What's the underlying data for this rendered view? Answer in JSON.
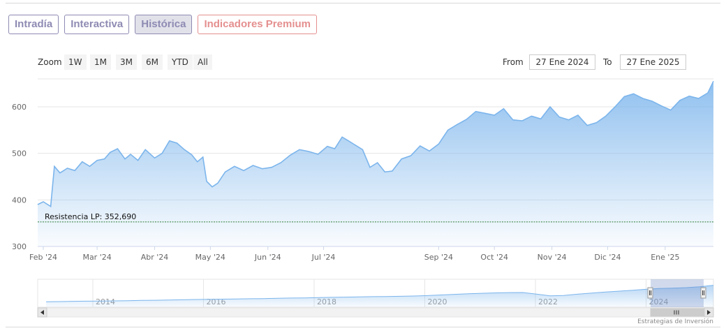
{
  "tabs": [
    {
      "label": "Intradía",
      "active": false,
      "premium": false
    },
    {
      "label": "Interactiva",
      "active": false,
      "premium": false
    },
    {
      "label": "Histórica",
      "active": true,
      "premium": false
    },
    {
      "label": "Indicadores Premium",
      "active": false,
      "premium": true
    }
  ],
  "zoom": {
    "label": "Zoom",
    "buttons": [
      "1W",
      "1M",
      "3M",
      "6M",
      "YTD",
      "All"
    ]
  },
  "range": {
    "from_label": "From",
    "from_value": "27 Ene 2024",
    "to_label": "To",
    "to_value": "27 Ene 2025"
  },
  "credits": "Estrategias de Inversión",
  "colors": {
    "accent": "#7cb5ec",
    "tab_text": "#8e8bb3",
    "premium_text": "#e58f8f",
    "support_line": "#2e7d32"
  },
  "chart_data": {
    "type": "area",
    "x_dates": [
      "2024-01-29",
      "2024-02-01",
      "2024-02-05",
      "2024-02-07",
      "2024-02-10",
      "2024-02-14",
      "2024-02-18",
      "2024-02-22",
      "2024-02-26",
      "2024-03-01",
      "2024-03-05",
      "2024-03-08",
      "2024-03-12",
      "2024-03-16",
      "2024-03-19",
      "2024-03-23",
      "2024-03-27",
      "2024-04-01",
      "2024-04-05",
      "2024-04-09",
      "2024-04-13",
      "2024-04-17",
      "2024-04-21",
      "2024-04-24",
      "2024-04-27",
      "2024-04-29",
      "2024-05-02",
      "2024-05-05",
      "2024-05-09",
      "2024-05-14",
      "2024-05-19",
      "2024-05-24",
      "2024-05-29",
      "2024-06-03",
      "2024-06-08",
      "2024-06-13",
      "2024-06-18",
      "2024-06-23",
      "2024-06-28",
      "2024-07-03",
      "2024-07-07",
      "2024-07-11",
      "2024-07-14",
      "2024-07-18",
      "2024-07-22",
      "2024-07-26",
      "2024-07-30",
      "2024-08-03",
      "2024-08-07",
      "2024-08-12",
      "2024-08-17",
      "2024-08-22",
      "2024-08-27",
      "2024-09-01",
      "2024-09-06",
      "2024-09-11",
      "2024-09-16",
      "2024-09-21",
      "2024-09-26",
      "2024-10-01",
      "2024-10-06",
      "2024-10-11",
      "2024-10-16",
      "2024-10-21",
      "2024-10-26",
      "2024-10-31",
      "2024-11-05",
      "2024-11-10",
      "2024-11-15",
      "2024-11-20",
      "2024-11-25",
      "2024-11-30",
      "2024-12-05",
      "2024-12-10",
      "2024-12-15",
      "2024-12-20",
      "2024-12-25",
      "2024-12-30",
      "2025-01-04",
      "2025-01-09",
      "2025-01-14",
      "2025-01-19",
      "2025-01-24",
      "2025-01-27"
    ],
    "values": [
      390,
      396,
      386,
      472,
      458,
      468,
      463,
      482,
      472,
      485,
      488,
      502,
      510,
      488,
      498,
      485,
      508,
      490,
      500,
      527,
      522,
      508,
      497,
      482,
      492,
      440,
      428,
      436,
      460,
      472,
      463,
      474,
      467,
      470,
      480,
      496,
      508,
      504,
      498,
      515,
      510,
      535,
      528,
      518,
      508,
      470,
      480,
      460,
      462,
      488,
      495,
      516,
      505,
      520,
      550,
      562,
      573,
      590,
      586,
      582,
      596,
      572,
      570,
      580,
      574,
      600,
      578,
      572,
      582,
      560,
      566,
      580,
      600,
      622,
      628,
      618,
      612,
      602,
      593,
      614,
      623,
      618,
      630,
      655
    ],
    "ylim": [
      300,
      660
    ],
    "y_ticks": [
      300,
      400,
      500,
      600
    ],
    "x_ticks": [
      {
        "date": "2024-02-01",
        "label": "Feb '24"
      },
      {
        "date": "2024-03-01",
        "label": "Mar '24"
      },
      {
        "date": "2024-04-01",
        "label": "Abr '24"
      },
      {
        "date": "2024-05-01",
        "label": "May '24"
      },
      {
        "date": "2024-06-01",
        "label": "Jun '24"
      },
      {
        "date": "2024-07-01",
        "label": "Jul '24"
      },
      {
        "date": "2024-09-01",
        "label": "Sep '24"
      },
      {
        "date": "2024-10-01",
        "label": "Oct '24"
      },
      {
        "date": "2024-11-01",
        "label": "Nov '24"
      },
      {
        "date": "2024-12-01",
        "label": "Dic '24"
      },
      {
        "date": "2025-01-01",
        "label": "Ene '25"
      }
    ],
    "support": {
      "label": "Resistencia LP: 352,690",
      "value": 352.69
    },
    "grid": true,
    "legend": "none",
    "navigator": {
      "years": [
        "2014",
        "2016",
        "2018",
        "2020",
        "2022",
        "2024"
      ],
      "values": [
        150,
        152,
        160,
        165,
        168,
        172,
        178,
        185,
        190,
        195,
        202,
        210,
        214,
        220,
        226,
        232,
        236,
        242,
        250,
        255,
        262,
        270,
        275,
        282,
        288,
        292,
        298,
        305,
        318,
        335,
        352,
        368,
        380,
        392,
        400,
        402,
        360,
        312,
        322,
        355,
        385,
        412,
        438,
        460,
        490,
        510,
        520,
        535,
        560,
        600
      ]
    }
  }
}
